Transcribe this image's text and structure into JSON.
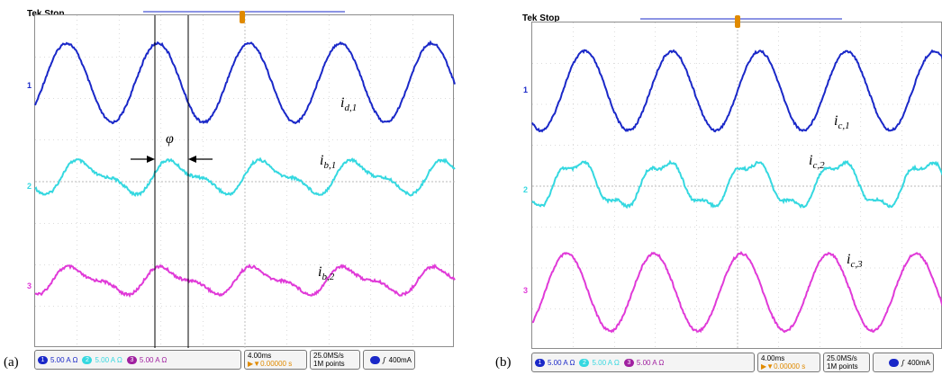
{
  "panels": [
    {
      "id": "a",
      "label": "(a)",
      "status": "Tek Stop",
      "waves": [
        {
          "name_main": "i",
          "name_sub": "d,1",
          "color": "#1a28c8"
        },
        {
          "name_main": "i",
          "name_sub": "b,1",
          "color": "#35d8e0"
        },
        {
          "name_main": "i",
          "name_sub": "b,2",
          "color": "#e03ad8"
        }
      ],
      "phi": "φ",
      "channels": [
        {
          "num": "1",
          "text": "5.00 A Ω",
          "color": "#1a28c8"
        },
        {
          "num": "2",
          "text": "5.00 A Ω",
          "color": "#35d8e0"
        },
        {
          "num": "3",
          "text": "5.00 A Ω",
          "color": "#a020a0"
        }
      ],
      "timebase": "4.00ms",
      "offset": "▶▼0.00000 s",
      "sample_rate": "25.0MS/s",
      "points": "1M points",
      "trigger": "400mA"
    },
    {
      "id": "b",
      "label": "(b)",
      "status": "Tek Stop",
      "waves": [
        {
          "name_main": "i",
          "name_sub": "c,1",
          "color": "#1a28c8"
        },
        {
          "name_main": "i",
          "name_sub": "c,2",
          "color": "#35d8e0"
        },
        {
          "name_main": "i",
          "name_sub": "c,3",
          "color": "#e03ad8"
        }
      ],
      "channels": [
        {
          "num": "1",
          "text": "5.00 A Ω",
          "color": "#1a28c8"
        },
        {
          "num": "2",
          "text": "5.00 A Ω",
          "color": "#35d8e0"
        },
        {
          "num": "3",
          "text": "5.00 A Ω",
          "color": "#a020a0"
        }
      ],
      "timebase": "4.00ms",
      "offset": "▶▼0.00000 s",
      "sample_rate": "25.0MS/s",
      "points": "1M points",
      "trigger": "400mA"
    }
  ]
}
